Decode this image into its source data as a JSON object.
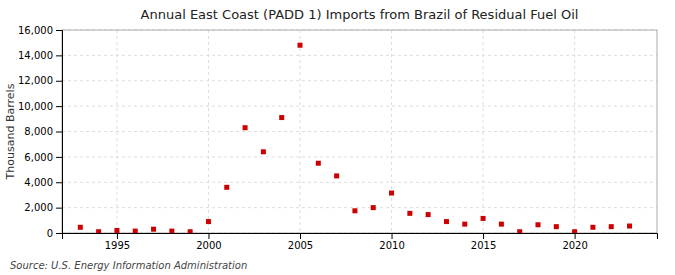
{
  "chart_data": {
    "type": "scatter",
    "title": "Annual East Coast (PADD 1) Imports from Brazil of Residual Fuel Oil",
    "y_label": "Thousand Barrels",
    "source": "Source: U.S. Energy Information Administration",
    "x": [
      1993,
      1994,
      1995,
      1996,
      1997,
      1998,
      1999,
      2000,
      2001,
      2002,
      2003,
      2004,
      2005,
      2006,
      2007,
      2008,
      2009,
      2010,
      2011,
      2012,
      2013,
      2014,
      2015,
      2016,
      2017,
      2018,
      2019,
      2020,
      2021,
      2022,
      2023
    ],
    "values": [
      450,
      100,
      200,
      150,
      300,
      150,
      100,
      900,
      3600,
      8300,
      6400,
      9100,
      14800,
      5500,
      4500,
      1750,
      2000,
      3150,
      1550,
      1450,
      900,
      700,
      1150,
      700,
      100,
      650,
      500,
      100,
      450,
      500,
      550
    ],
    "color": "#cc0000",
    "marker": "square",
    "xlim": [
      1992,
      2024.5
    ],
    "ylim": [
      0,
      16001
    ],
    "xticks": [
      1995,
      2000,
      2005,
      2010,
      2015,
      2020
    ],
    "yticks": [
      0,
      {
        "value": 2000,
        "label": "2,000"
      },
      {
        "value": 4000,
        "label": "4,000"
      },
      {
        "value": 6000,
        "label": "6,000"
      },
      {
        "value": 8000,
        "label": "8,000"
      },
      {
        "value": 10000,
        "label": "10,000"
      },
      {
        "value": 12000,
        "label": "12,000"
      },
      {
        "value": 14000,
        "label": "14,000"
      },
      {
        "value": 16000,
        "label": "16,000"
      }
    ],
    "grid": true
  }
}
